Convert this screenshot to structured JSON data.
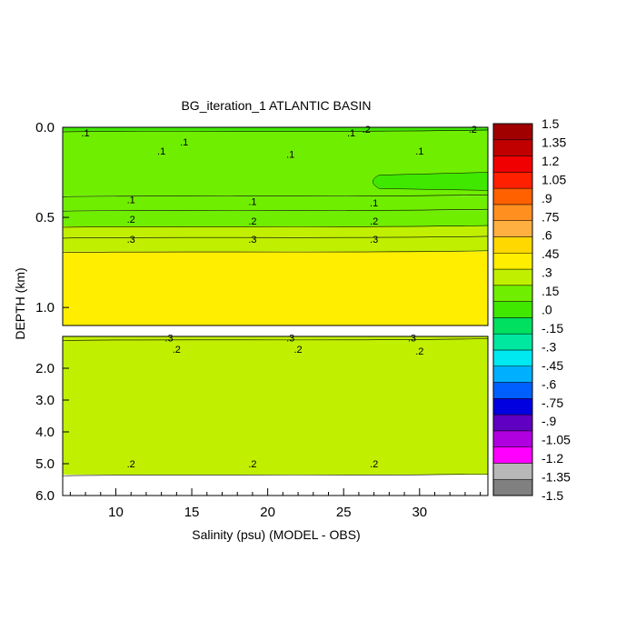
{
  "chart_data": {
    "type": "heatmap",
    "title": "BG_iteration_1 ATLANTIC BASIN",
    "xlabel": "Salinity (psu) (MODEL - OBS)",
    "ylabel": "DEPTH (km)",
    "xlim": [
      6.5,
      34.5
    ],
    "x_ticks": [
      10,
      15,
      20,
      25,
      30
    ],
    "top_panel": {
      "ylim": [
        0.0,
        1.1
      ],
      "y_ticks": [
        "0.0",
        "0.5",
        "1.0"
      ],
      "layers": [
        {
          "from": 0.0,
          "to": 0.02,
          "value": -0.05
        },
        {
          "from": 0.02,
          "to": 0.38,
          "value": 0.07
        },
        {
          "from": 0.38,
          "to": 0.46,
          "value": 0.12
        },
        {
          "from": 0.46,
          "to": 0.55,
          "value": 0.17
        },
        {
          "from": 0.55,
          "to": 0.61,
          "value": 0.22
        },
        {
          "from": 0.61,
          "to": 0.69,
          "value": 0.27
        },
        {
          "from": 0.69,
          "to": 1.1,
          "value": 0.35
        }
      ],
      "patches": [
        {
          "x": [
            26.5,
            34.5
          ],
          "y": [
            0.25,
            0.35
          ],
          "value": 0.0
        }
      ],
      "contour_labels": [
        {
          "text": ".1",
          "x": 8.0,
          "y": 0.03
        },
        {
          "text": ".1",
          "x": 14.5,
          "y": 0.08
        },
        {
          "text": ".1",
          "x": 13.0,
          "y": 0.13
        },
        {
          "text": ".1",
          "x": 21.5,
          "y": 0.15
        },
        {
          "text": ".1",
          "x": 25.5,
          "y": 0.03
        },
        {
          "text": ".2",
          "x": 26.5,
          "y": 0.01
        },
        {
          "text": ".2",
          "x": 33.5,
          "y": 0.01
        },
        {
          "text": ".1",
          "x": 30.0,
          "y": 0.13
        },
        {
          "text": ".1",
          "x": 11.0,
          "y": 0.4
        },
        {
          "text": ".1",
          "x": 19.0,
          "y": 0.41
        },
        {
          "text": ".1",
          "x": 27.0,
          "y": 0.42
        },
        {
          "text": ".2",
          "x": 11.0,
          "y": 0.51
        },
        {
          "text": ".2",
          "x": 19.0,
          "y": 0.52
        },
        {
          "text": ".2",
          "x": 27.0,
          "y": 0.52
        },
        {
          "text": ".3",
          "x": 11.0,
          "y": 0.62
        },
        {
          "text": ".3",
          "x": 19.0,
          "y": 0.62
        },
        {
          "text": ".3",
          "x": 27.0,
          "y": 0.62
        }
      ]
    },
    "bottom_panel": {
      "ylim": [
        1.0,
        6.0
      ],
      "y_ticks": [
        "2.0",
        "3.0",
        "4.0",
        "5.0",
        "6.0"
      ],
      "layers": [
        {
          "from": 1.0,
          "to": 1.1,
          "value": 0.27
        },
        {
          "from": 1.1,
          "to": 5.35,
          "value": 0.22
        },
        {
          "from": 5.35,
          "to": 6.0,
          "value": null
        }
      ],
      "contour_labels": [
        {
          "text": ".3",
          "x": 13.5,
          "y": 1.04
        },
        {
          "text": ".3",
          "x": 21.5,
          "y": 1.04
        },
        {
          "text": ".3",
          "x": 29.5,
          "y": 1.04
        },
        {
          "text": ".2",
          "x": 14.0,
          "y": 1.4
        },
        {
          "text": ".2",
          "x": 22.0,
          "y": 1.4
        },
        {
          "text": ".2",
          "x": 30.0,
          "y": 1.45
        },
        {
          "text": ".2",
          "x": 11.0,
          "y": 5.0
        },
        {
          "text": ".2",
          "x": 19.0,
          "y": 5.0
        },
        {
          "text": ".2",
          "x": 27.0,
          "y": 5.0
        }
      ]
    },
    "colorbar": {
      "levels": [
        "1.5",
        "1.35",
        "1.2",
        "1.05",
        ".9",
        ".75",
        ".6",
        ".45",
        ".3",
        ".15",
        ".0",
        "-.15",
        "-.3",
        "-.45",
        "-.6",
        "-.75",
        "-.9",
        "-1.05",
        "-1.2",
        "-1.35",
        "-1.5"
      ],
      "range": [
        -1.5,
        1.5
      ],
      "colors": [
        "#808080",
        "#b8b8b8",
        "#ff00ff",
        "#b000e0",
        "#6000c0",
        "#0000e0",
        "#0060ff",
        "#00b0ff",
        "#00e8f0",
        "#00e8a0",
        "#00e060",
        "#40e800",
        "#70ee00",
        "#c0f000",
        "#ffee00",
        "#ffd800",
        "#ffb040",
        "#ff9020",
        "#ff6000",
        "#ff2000",
        "#f00000",
        "#c00000",
        "#a00000"
      ]
    }
  }
}
